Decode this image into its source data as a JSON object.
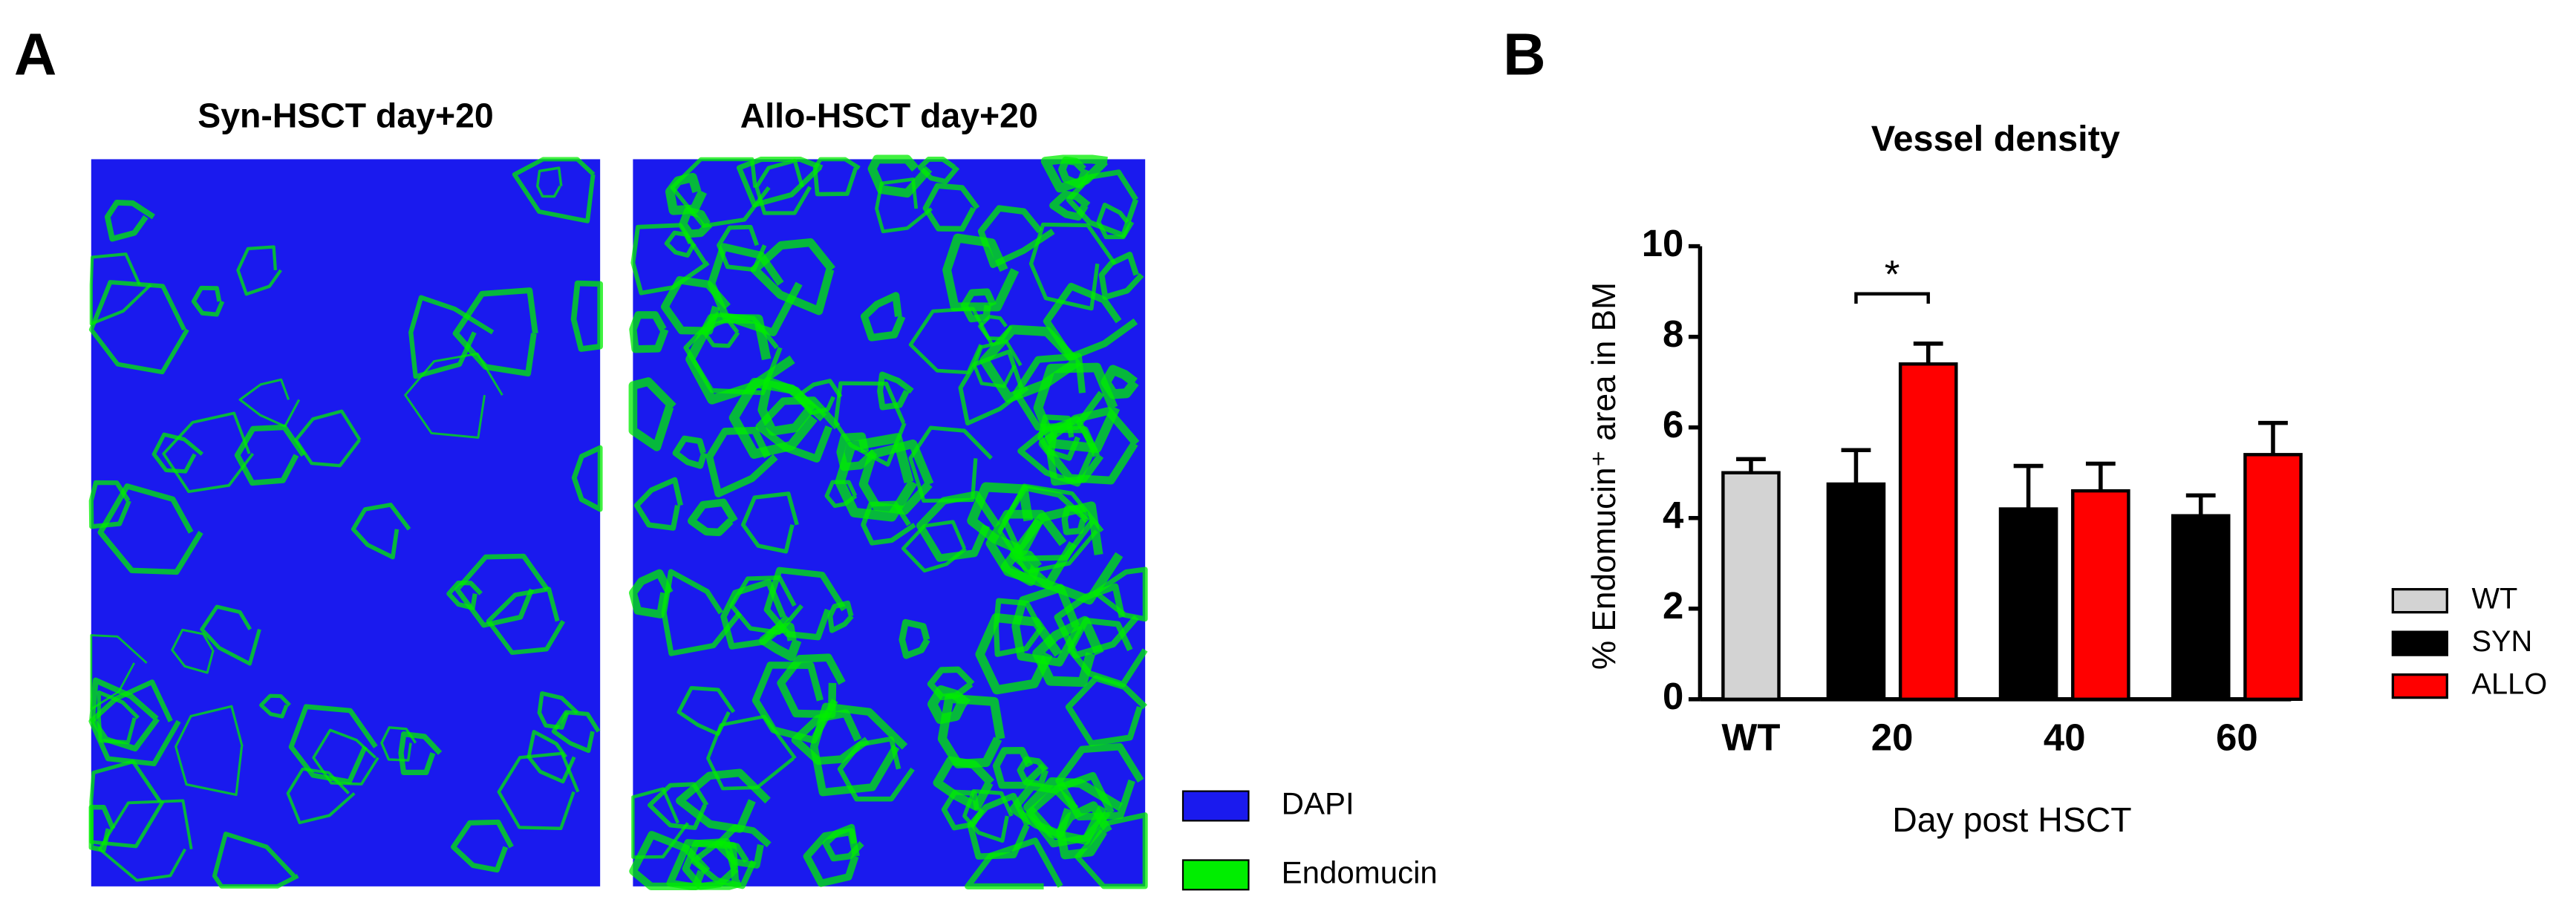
{
  "panel_a": {
    "label": "A",
    "images": [
      {
        "title": "Syn-HSCT day+20"
      },
      {
        "title": "Allo-HSCT day+20"
      }
    ],
    "legend": [
      {
        "name": "DAPI",
        "color": "#1a1aee"
      },
      {
        "name": "Endomucin",
        "color": "#00ee00"
      }
    ]
  },
  "chart_data": {
    "type": "bar",
    "panel_label": "B",
    "title": "Vessel density",
    "x_label": "Day post HSCT",
    "y_label": "% Endomucin⁺ area in BM",
    "categories": [
      "WT",
      "20",
      "40",
      "60"
    ],
    "series": [
      {
        "name": "WT",
        "color": "#d3d3d3",
        "values": [
          5.0,
          null,
          null,
          null
        ],
        "errors": [
          0.3,
          null,
          null,
          null
        ]
      },
      {
        "name": "SYN",
        "color": "#000000",
        "values": [
          null,
          4.75,
          4.2,
          4.05
        ],
        "errors": [
          null,
          0.75,
          0.95,
          0.45
        ]
      },
      {
        "name": "ALLO",
        "color": "#ff0000",
        "values": [
          null,
          7.4,
          4.6,
          5.4
        ],
        "errors": [
          null,
          0.45,
          0.6,
          0.7
        ]
      }
    ],
    "ylim": [
      0,
      10
    ],
    "yticks": [
      0,
      2,
      4,
      6,
      8,
      10
    ],
    "annotations": [
      {
        "text": "*"
      }
    ]
  }
}
